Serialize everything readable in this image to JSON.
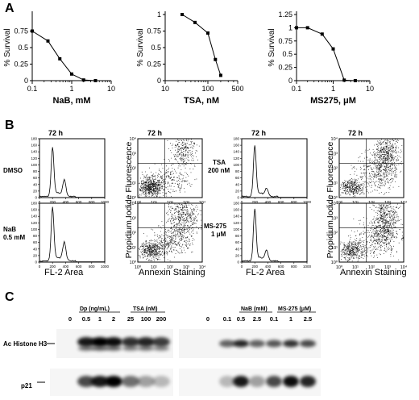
{
  "panel_A": {
    "letter": "A",
    "charts": [
      {
        "type": "line",
        "xscale": "log",
        "xlabel": "NaB, mM",
        "ylabel": "% Survival",
        "xlim": [
          0.1,
          10
        ],
        "ylim": [
          0,
          1
        ],
        "xticks": [
          "0.1",
          "1",
          "10"
        ],
        "yticks": [
          "0",
          "0.25",
          "0.5",
          "0.75"
        ],
        "x": [
          0.1,
          0.25,
          0.5,
          1,
          2,
          4
        ],
        "y": [
          0.75,
          0.6,
          0.33,
          0.1,
          0.01,
          0.0
        ]
      },
      {
        "type": "line",
        "xscale": "log",
        "xlabel": "TSA, nM",
        "ylabel": "% Survival",
        "xlim": [
          10,
          500
        ],
        "ylim": [
          0,
          1
        ],
        "xticks": [
          "10",
          "100",
          "500"
        ],
        "yticks": [
          "0",
          "0.25",
          "0.5",
          "0.75",
          "1"
        ],
        "x": [
          25,
          50,
          100,
          150,
          200
        ],
        "y": [
          1.0,
          0.88,
          0.72,
          0.32,
          0.08
        ]
      },
      {
        "type": "line",
        "xscale": "log",
        "xlabel": "MS275, μM",
        "ylabel": "% Survival",
        "xlim": [
          0.1,
          10
        ],
        "ylim": [
          0,
          1.25
        ],
        "xticks": [
          "0.1",
          "1",
          "10"
        ],
        "yticks": [
          "0",
          "0.25",
          "0.5",
          "0.75",
          "1",
          "1.25"
        ],
        "x": [
          0.1,
          0.2,
          0.5,
          1,
          2,
          4
        ],
        "y": [
          1.0,
          1.0,
          0.88,
          0.6,
          0.01,
          0.0
        ]
      }
    ]
  },
  "panel_B": {
    "letter": "B",
    "time_label": "72 h",
    "hist_yticks": [
      "0",
      "20",
      "40",
      "60",
      "80",
      "100",
      "120",
      "140",
      "160",
      "180"
    ],
    "hist_xticks": [
      "0",
      "200",
      "400",
      "600",
      "800",
      "1000"
    ],
    "scatter_ticks": [
      "10⁰",
      "10¹",
      "10²",
      "10³",
      "10⁴"
    ],
    "hist_xlabel": "FL-2 Area",
    "scatter_xlabel": "Annexin Staining",
    "scatter_ylabel": "Propidium Iodide Fluorescence",
    "treatments": {
      "dmso": "DMSO",
      "nab_line1": "NaB",
      "nab_line2": "0.5 mM",
      "tsa_line1": "TSA",
      "tsa_line2": "200 nM",
      "ms_line1": "MS-275",
      "ms_line2": "1 μM"
    }
  },
  "panel_C": {
    "letter": "C",
    "left_groups": {
      "dp": "Dp (ng/mL)",
      "tsa": "TSA (nM)"
    },
    "right_groups": {
      "nab": "NaB (mM)",
      "ms": "MS-275 (μM)"
    },
    "left_lanes": [
      "0",
      "0.5",
      "1",
      "2",
      "25",
      "100",
      "200"
    ],
    "right_lanes": [
      "0",
      "0.1",
      "0.5",
      "2.5",
      "0.1",
      "1",
      "2.5"
    ],
    "rows": {
      "histone": "Ac Histone H3",
      "p21": "p21"
    }
  }
}
